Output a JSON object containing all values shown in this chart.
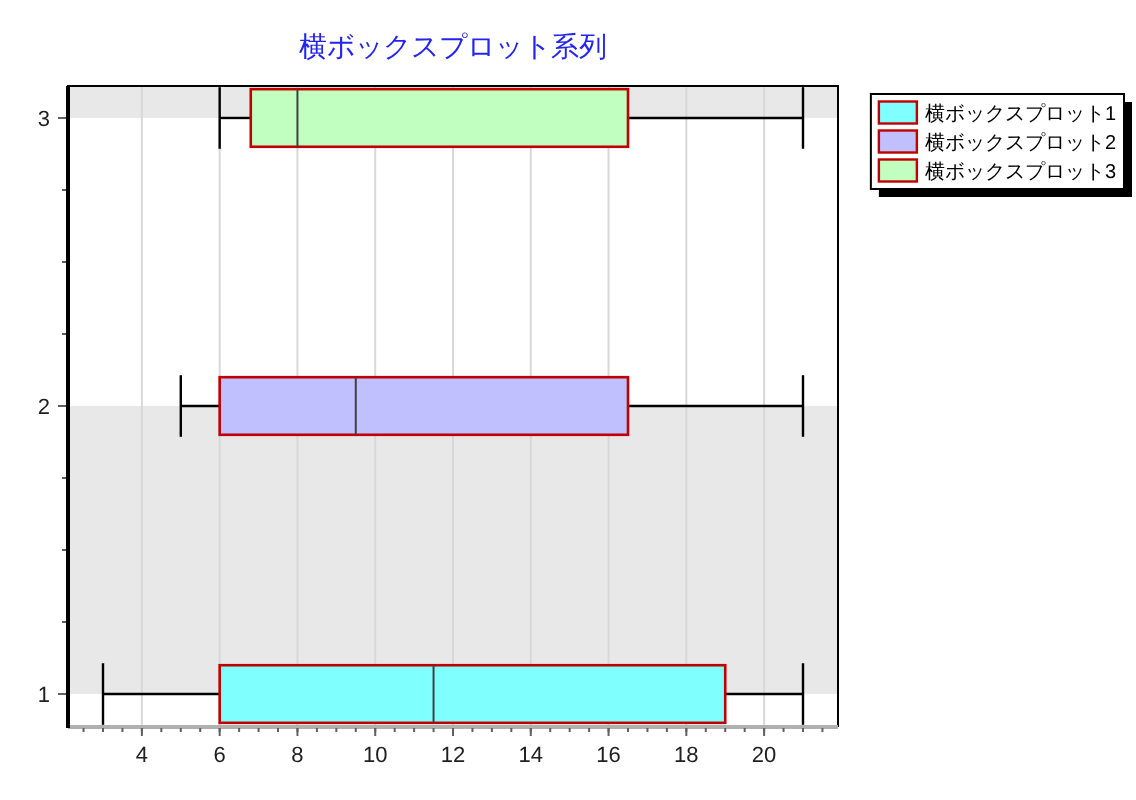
{
  "chart_data": {
    "type": "box",
    "title": "横ボックスプロット系列",
    "orientation": "horizontal",
    "categories": [
      "3",
      "2",
      "1"
    ],
    "series": [
      {
        "name": "横ボックスプロット1",
        "color": "#80ffff",
        "boxes": [
          null,
          null,
          {
            "low": 3,
            "q1": 6,
            "median": 11.5,
            "q3": 19,
            "high": 21
          }
        ]
      },
      {
        "name": "横ボックスプロット2",
        "color": "#c0c0ff",
        "boxes": [
          null,
          {
            "low": 5,
            "q1": 6,
            "median": 9.5,
            "q3": 16.5,
            "high": 21
          },
          null
        ]
      },
      {
        "name": "横ボックスプロット3",
        "color": "#c0ffc0",
        "boxes": [
          {
            "low": 6,
            "q1": 6.8,
            "median": 8,
            "q3": 16.5,
            "high": 21
          },
          null,
          null
        ]
      }
    ],
    "xlim": [
      2.1,
      21.9
    ],
    "xticks": [
      4,
      6,
      8,
      10,
      12,
      14,
      16,
      18,
      20
    ],
    "grid": "x",
    "legend": "top right"
  }
}
